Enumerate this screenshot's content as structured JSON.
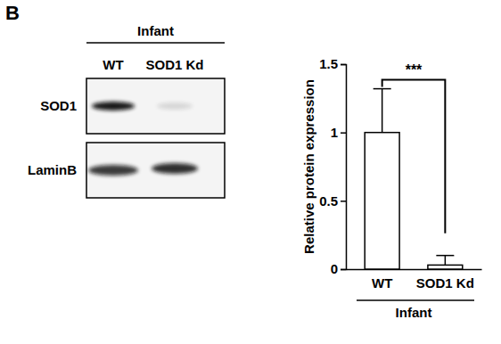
{
  "panel_label": "B",
  "blot": {
    "title": "Infant",
    "lanes": [
      "WT",
      "SOD1 Kd"
    ],
    "rows": [
      "SOD1",
      "LaminB"
    ]
  },
  "chart_data": {
    "type": "bar",
    "categories": [
      "WT",
      "SOD1 Kd"
    ],
    "values": [
      1,
      0.03
    ],
    "errors": [
      0.32,
      0.07
    ],
    "color": "#ffffff",
    "y_label": "Relative protein expression",
    "x_label": "Infant",
    "annotations": [
      "***"
    ],
    "ylim": [
      0,
      1.5
    ],
    "yticks": [
      0,
      0.5,
      1,
      1.5
    ]
  }
}
